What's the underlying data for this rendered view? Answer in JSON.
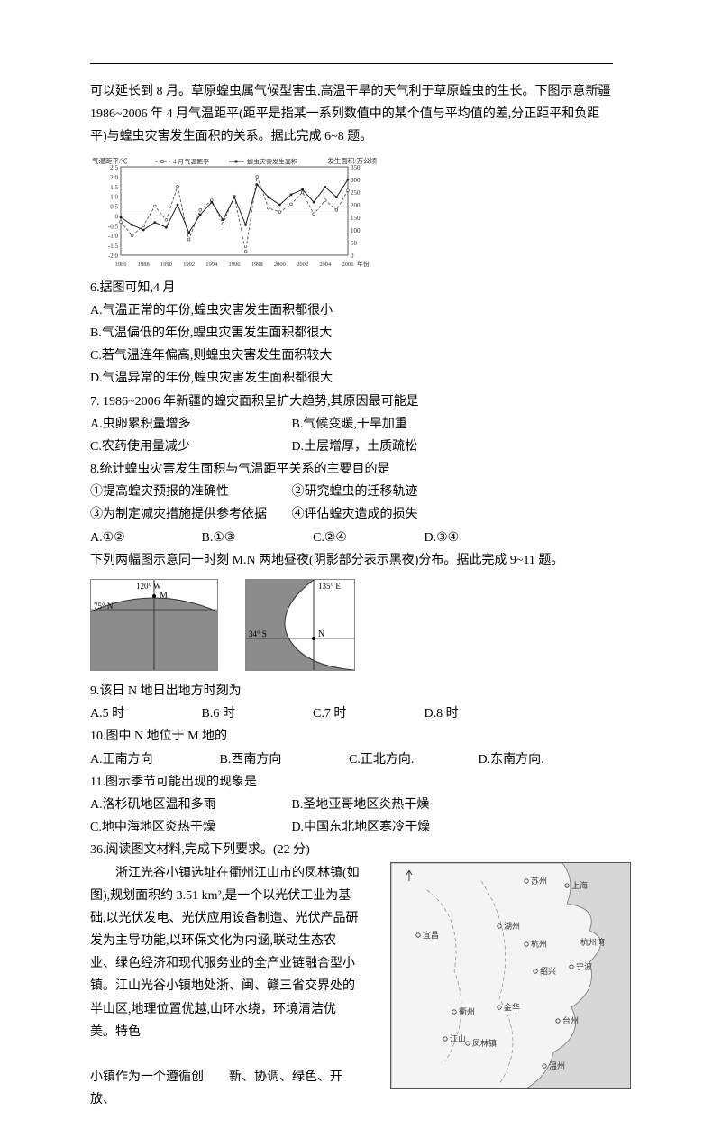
{
  "intro": {
    "p1": "可以延长到 8 月。草原蝗虫属气候型害虫,高温干旱的天气利于草原蝗虫的生长。下图示意新疆 1986~2006 年 4 月气温距平(距平是指某一系列数值中的某个值与平均值的差,分正距平和负距平)与蝗虫灾害发生面积的关系。据此完成 6~8 题。"
  },
  "chart": {
    "left_axis_label": "气温距平/℃",
    "right_axis_label": "发生面积/万公顷",
    "legend1": "4 月气温距平",
    "legend2": "蝗虫灾害发生面积",
    "left_ticks": [
      "2.5",
      "2.0",
      "1.5",
      "1.0",
      "0.5",
      "0",
      "-0.5",
      "-1.0",
      "-1.5",
      "-2.0"
    ],
    "right_ticks": [
      "350",
      "300",
      "250",
      "200",
      "150",
      "100",
      "50",
      "0"
    ],
    "x_ticks": [
      "1986",
      "1988",
      "1990",
      "1992",
      "1994",
      "1996",
      "1998",
      "2000",
      "2002",
      "2004",
      "2006"
    ],
    "x_label": "年份",
    "series1_y": [
      -0.3,
      -1.0,
      -0.5,
      0.5,
      -0.2,
      1.5,
      -1.2,
      0.3,
      0.8,
      -0.4,
      1.0,
      -1.8,
      2.0,
      0.4,
      0.2,
      0.6,
      1.2,
      0.1,
      0.8,
      0.3,
      1.3
    ],
    "series2_y": [
      150,
      120,
      100,
      130,
      110,
      200,
      90,
      160,
      210,
      140,
      230,
      120,
      280,
      230,
      200,
      240,
      260,
      210,
      270,
      230,
      300
    ],
    "line_color1": "#555555",
    "line_color2": "#222222",
    "bg": "#ffffff",
    "grid_color": "#bbbbbb"
  },
  "q6": {
    "stem": "6.据图可知,4 月",
    "a": "A.气温正常的年份,蝗虫灾害发生面积都很小",
    "b": "B.气温偏低的年份,蝗虫灾害发生面积都很大",
    "c": "C.若气温连年偏高,则蝗虫灾害发生面积较大",
    "d": "D.气温异常的年份,蝗虫灾害发生面积都很大"
  },
  "q7": {
    "stem": "7. 1986~2006 年新疆的蝗灾面积呈扩大趋势,其原因最可能是",
    "a": "A.虫卵累积量增多",
    "b": "B.气候变暖,干旱加重",
    "c": "C.农药使用量减少",
    "d": "D.土层增厚，土质疏松"
  },
  "q8": {
    "stem": "8.统计蝗虫灾害发生面积与气温距平关系的主要目的是",
    "s1": "①提高蝗灾预报的准确性",
    "s2": "②研究蝗虫的迁移轨迹",
    "s3": "③为制定减灾措施提供参考依据",
    "s4": "④评估蝗灾造成的损失",
    "a": "A.①②",
    "b": "B.①③",
    "c": "C.②④",
    "d": "D.③④"
  },
  "set2_intro": "下列两幅图示意同一时刻 M.N 两地昼夜(阴影部分表示黑夜)分布。据此完成 9~11 题。",
  "diagramM": {
    "lon_label": "120° W",
    "lat_label": "75° N",
    "point": "M",
    "night_color": "#8c8c8c",
    "day_color": "#ffffff"
  },
  "diagramN": {
    "lon_label": "135° E",
    "lat_label": "34° S",
    "point": "N",
    "night_color": "#8c8c8c",
    "day_color": "#ffffff"
  },
  "q9": {
    "stem": "9.该日 N 地日出地方时刻为",
    "a": "A.5 时",
    "b": "B.6 时",
    "c": "C.7 时",
    "d": "D.8 时"
  },
  "q10": {
    "stem": "10.图中 N 地位于 M 地的",
    "a": "A.正南方向",
    "b": "B.西南方向",
    "c": "C.正北方向.",
    "d": "D.东南方向."
  },
  "q11": {
    "stem": "11.图示季节可能出现的现象是",
    "a": "A.洛杉矶地区温和多雨",
    "b": "B.圣地亚哥地区炎热干燥",
    "c": "C.地中海地区炎热干燥",
    "d": "D.中国东北地区寒冷干燥"
  },
  "q36": {
    "stem": "36.阅读图文材料,完成下列要求。(22 分)",
    "p1": "浙江光谷小镇选址在衢州江山市的凤林镇(如图),规划面积约 3.51 km²,是一个以光伏工业为基础,以光伏发电、光伏应用设备制造、光伏产品研发为主导功能,以环保文化为内涵,联动生态农业、绿色经济和现代服务业的全产业链融合型小镇。江山光谷小镇地处浙、闽、赣三省交界处的半山区,地理位置优越,山环水绕，环境清洁优美。特色",
    "p2": "小镇作为一个遵循创　　新、协调、绿色、开放、"
  },
  "map": {
    "cities": [
      "苏州",
      "上海",
      "宜昌",
      "湖州",
      "杭州",
      "杭州湾",
      "宁波",
      "绍兴",
      "衢州",
      "金华",
      "江山",
      "凤林镇",
      "台州",
      "温州"
    ],
    "sea_color": "#d7d7d7",
    "land_color": "#f4f4f4",
    "border_color": "#777777",
    "text_color": "#333333"
  }
}
